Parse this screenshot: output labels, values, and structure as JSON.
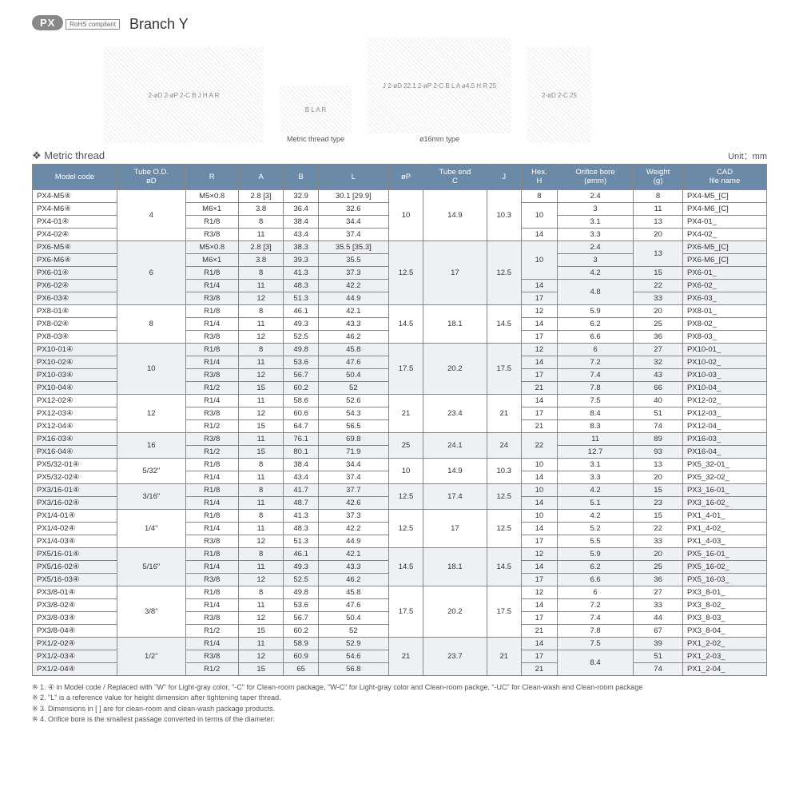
{
  "header": {
    "badge": "PX",
    "title": "Branch Y",
    "rohs": "RoHS compliant"
  },
  "diagrams": {
    "d1_labels": "2-øD  2-øP  2-C  B  J  H  A  R",
    "d2_caption": "Metric thread type",
    "d3_caption": "ø16mm type",
    "d3_labels": "J  2-øD  22.1  2-øP  2-C  B  L  A  ø4.5  H  R  25"
  },
  "section": {
    "title": "Metric thread",
    "unit": "Unit：mm"
  },
  "columns": [
    "Model code",
    "Tube O.D.\nøD",
    "R",
    "A",
    "B",
    "L",
    "øP",
    "Tube end\nC",
    "J",
    "Hex.\nH",
    "Orifice bore\n(ømm)",
    "Weight\n(g)",
    "CAD\nfile name"
  ],
  "groups": [
    {
      "alt": false,
      "od": "4",
      "p": "10",
      "c": "14.9",
      "j": "10.3",
      "rows": [
        {
          "m": "PX4-M5④",
          "r": "M5×0.8",
          "a": "2.8 [3]",
          "b": "32.9",
          "l": "30.1 [29.9]",
          "h": "8",
          "ob": "2.4",
          "w": "8",
          "cad": "PX4-M5_[C]"
        },
        {
          "m": "PX4-M6④",
          "r": "M6×1",
          "a": "3.8",
          "b": "36.4",
          "l": "32.6",
          "h": "10",
          "hspan": 2,
          "ob": "3",
          "w": "11",
          "cad": "PX4-M6_[C]"
        },
        {
          "m": "PX4-01④",
          "r": "R1/8",
          "a": "8",
          "b": "38.4",
          "l": "34.4",
          "ob": "3.1",
          "w": "13",
          "cad": "PX4-01_"
        },
        {
          "m": "PX4-02④",
          "r": "R3/8",
          "a": "11",
          "b": "43.4",
          "l": "37.4",
          "h": "14",
          "ob": "3.3",
          "w": "20",
          "cad": "PX4-02_"
        }
      ]
    },
    {
      "alt": true,
      "od": "6",
      "p": "12.5",
      "c": "17",
      "j": "12.5",
      "rows": [
        {
          "m": "PX6-M5④",
          "r": "M5×0.8",
          "a": "2.8 [3]",
          "b": "38.3",
          "l": "35.5 [35.3]",
          "h": "10",
          "hspan": 3,
          "ob": "2.4",
          "w": "13",
          "wspan": 2,
          "cad": "PX6-M5_[C]"
        },
        {
          "m": "PX6-M6④",
          "r": "M6×1",
          "a": "3.8",
          "b": "39.3",
          "l": "35.5",
          "ob": "3",
          "cad": "PX6-M6_[C]"
        },
        {
          "m": "PX6-01④",
          "r": "R1/8",
          "a": "8",
          "b": "41.3",
          "l": "37.3",
          "ob": "4.2",
          "w": "15",
          "cad": "PX6-01_"
        },
        {
          "m": "PX6-02④",
          "r": "R1/4",
          "a": "11",
          "b": "48.3",
          "l": "42.2",
          "h": "14",
          "ob": "4.8",
          "obspan": 2,
          "w": "22",
          "cad": "PX6-02_"
        },
        {
          "m": "PX6-03④",
          "r": "R3/8",
          "a": "12",
          "b": "51.3",
          "l": "44.9",
          "h": "17",
          "w": "33",
          "cad": "PX6-03_"
        }
      ]
    },
    {
      "alt": false,
      "od": "8",
      "p": "14.5",
      "c": "18.1",
      "j": "14.5",
      "rows": [
        {
          "m": "PX8-01④",
          "r": "R1/8",
          "a": "8",
          "b": "46.1",
          "l": "42.1",
          "h": "12",
          "ob": "5.9",
          "w": "20",
          "cad": "PX8-01_"
        },
        {
          "m": "PX8-02④",
          "r": "R1/4",
          "a": "11",
          "b": "49.3",
          "l": "43.3",
          "h": "14",
          "ob": "6.2",
          "w": "25",
          "cad": "PX8-02_"
        },
        {
          "m": "PX8-03④",
          "r": "R3/8",
          "a": "12",
          "b": "52.5",
          "l": "46.2",
          "h": "17",
          "ob": "6.6",
          "w": "36",
          "cad": "PX8-03_"
        }
      ]
    },
    {
      "alt": true,
      "od": "10",
      "p": "17.5",
      "c": "20.2",
      "j": "17.5",
      "rows": [
        {
          "m": "PX10-01④",
          "r": "R1/8",
          "a": "8",
          "b": "49.8",
          "l": "45.8",
          "h": "12",
          "ob": "6",
          "w": "27",
          "cad": "PX10-01_"
        },
        {
          "m": "PX10-02④",
          "r": "R1/4",
          "a": "11",
          "b": "53.6",
          "l": "47.6",
          "h": "14",
          "ob": "7.2",
          "w": "32",
          "cad": "PX10-02_"
        },
        {
          "m": "PX10-03④",
          "r": "R3/8",
          "a": "12",
          "b": "56.7",
          "l": "50.4",
          "h": "17",
          "ob": "7.4",
          "w": "43",
          "cad": "PX10-03_"
        },
        {
          "m": "PX10-04④",
          "r": "R1/2",
          "a": "15",
          "b": "60.2",
          "l": "52",
          "h": "21",
          "ob": "7.8",
          "w": "66",
          "cad": "PX10-04_"
        }
      ]
    },
    {
      "alt": false,
      "od": "12",
      "p": "21",
      "c": "23.4",
      "j": "21",
      "rows": [
        {
          "m": "PX12-02④",
          "r": "R1/4",
          "a": "11",
          "b": "58.6",
          "l": "52.6",
          "h": "14",
          "ob": "7.5",
          "w": "40",
          "cad": "PX12-02_"
        },
        {
          "m": "PX12-03④",
          "r": "R3/8",
          "a": "12",
          "b": "60.6",
          "l": "54.3",
          "h": "17",
          "ob": "8.4",
          "w": "51",
          "cad": "PX12-03_"
        },
        {
          "m": "PX12-04④",
          "r": "R1/2",
          "a": "15",
          "b": "64.7",
          "l": "56.5",
          "h": "21",
          "ob": "8.3",
          "w": "74",
          "cad": "PX12-04_"
        }
      ]
    },
    {
      "alt": true,
      "od": "16",
      "p": "25",
      "c": "24.1",
      "j": "24",
      "rows": [
        {
          "m": "PX16-03④",
          "r": "R3/8",
          "a": "11",
          "b": "76.1",
          "l": "69.8",
          "h": "22",
          "hspan": 2,
          "ob": "11",
          "w": "89",
          "cad": "PX16-03_"
        },
        {
          "m": "PX16-04④",
          "r": "R1/2",
          "a": "15",
          "b": "80.1",
          "l": "71.9",
          "ob": "12.7",
          "w": "93",
          "cad": "PX16-04_"
        }
      ]
    },
    {
      "alt": false,
      "od": "5/32\"",
      "p": "10",
      "c": "14.9",
      "j": "10.3",
      "rows": [
        {
          "m": "PX5/32-01④",
          "r": "R1/8",
          "a": "8",
          "b": "38.4",
          "l": "34.4",
          "h": "10",
          "ob": "3.1",
          "w": "13",
          "cad": "PX5_32-01_"
        },
        {
          "m": "PX5/32-02④",
          "r": "R1/4",
          "a": "11",
          "b": "43.4",
          "l": "37.4",
          "h": "14",
          "ob": "3.3",
          "w": "20",
          "cad": "PX5_32-02_"
        }
      ]
    },
    {
      "alt": true,
      "od": "3/16\"",
      "p": "12.5",
      "c": "17.4",
      "j": "12.5",
      "rows": [
        {
          "m": "PX3/16-01④",
          "r": "R1/8",
          "a": "8",
          "b": "41.7",
          "l": "37.7",
          "h": "10",
          "ob": "4.2",
          "w": "15",
          "cad": "PX3_16-01_"
        },
        {
          "m": "PX3/16-02④",
          "r": "R1/4",
          "a": "11",
          "b": "48.7",
          "l": "42.6",
          "h": "14",
          "ob": "5.1",
          "w": "23",
          "cad": "PX3_16-02_"
        }
      ]
    },
    {
      "alt": false,
      "od": "1/4\"",
      "p": "12.5",
      "c": "17",
      "j": "12.5",
      "rows": [
        {
          "m": "PX1/4-01④",
          "r": "R1/8",
          "a": "8",
          "b": "41.3",
          "l": "37.3",
          "h": "10",
          "ob": "4.2",
          "w": "15",
          "cad": "PX1_4-01_"
        },
        {
          "m": "PX1/4-02④",
          "r": "R1/4",
          "a": "11",
          "b": "48.3",
          "l": "42.2",
          "h": "14",
          "ob": "5.2",
          "w": "22",
          "cad": "PX1_4-02_"
        },
        {
          "m": "PX1/4-03④",
          "r": "R3/8",
          "a": "12",
          "b": "51.3",
          "l": "44.9",
          "h": "17",
          "ob": "5.5",
          "w": "33",
          "cad": "PX1_4-03_"
        }
      ]
    },
    {
      "alt": true,
      "od": "5/16\"",
      "p": "14.5",
      "c": "18.1",
      "j": "14.5",
      "rows": [
        {
          "m": "PX5/16-01④",
          "r": "R1/8",
          "a": "8",
          "b": "46.1",
          "l": "42.1",
          "h": "12",
          "ob": "5.9",
          "w": "20",
          "cad": "PX5_16-01_"
        },
        {
          "m": "PX5/16-02④",
          "r": "R1/4",
          "a": "11",
          "b": "49.3",
          "l": "43.3",
          "h": "14",
          "ob": "6.2",
          "w": "25",
          "cad": "PX5_16-02_"
        },
        {
          "m": "PX5/16-03④",
          "r": "R3/8",
          "a": "12",
          "b": "52.5",
          "l": "46.2",
          "h": "17",
          "ob": "6.6",
          "w": "36",
          "cad": "PX5_16-03_"
        }
      ]
    },
    {
      "alt": false,
      "od": "3/8\"",
      "p": "17.5",
      "c": "20.2",
      "j": "17.5",
      "rows": [
        {
          "m": "PX3/8-01④",
          "r": "R1/8",
          "a": "8",
          "b": "49.8",
          "l": "45.8",
          "h": "12",
          "ob": "6",
          "w": "27",
          "cad": "PX3_8-01_"
        },
        {
          "m": "PX3/8-02④",
          "r": "R1/4",
          "a": "11",
          "b": "53.6",
          "l": "47.6",
          "h": "14",
          "ob": "7.2",
          "w": "33",
          "cad": "PX3_8-02_"
        },
        {
          "m": "PX3/8-03④",
          "r": "R3/8",
          "a": "12",
          "b": "56.7",
          "l": "50.4",
          "h": "17",
          "ob": "7.4",
          "w": "44",
          "cad": "PX3_8-03_"
        },
        {
          "m": "PX3/8-04④",
          "r": "R1/2",
          "a": "15",
          "b": "60.2",
          "l": "52",
          "h": "21",
          "ob": "7.8",
          "w": "67",
          "cad": "PX3_8-04_"
        }
      ]
    },
    {
      "alt": true,
      "od": "1/2\"",
      "p": "21",
      "c": "23.7",
      "j": "21",
      "rows": [
        {
          "m": "PX1/2-02④",
          "r": "R1/4",
          "a": "11",
          "b": "58.9",
          "l": "52.9",
          "h": "14",
          "ob": "7.5",
          "w": "39",
          "cad": "PX1_2-02_"
        },
        {
          "m": "PX1/2-03④",
          "r": "R3/8",
          "a": "12",
          "b": "60.9",
          "l": "54.6",
          "h": "17",
          "ob": "8.4",
          "obspan": 2,
          "w": "51",
          "cad": "PX1_2-03_"
        },
        {
          "m": "PX1/2-04④",
          "r": "R1/2",
          "a": "15",
          "b": "65",
          "l": "56.8",
          "h": "21",
          "w": "74",
          "cad": "PX1_2-04_"
        }
      ]
    }
  ],
  "notes": [
    "※ 1. ④ in Model code / Replaced with \"W\" for Light-gray color, \"-C\" for Clean-room package, \"W-C\" for Light-gray color and Clean-room packge, \"-UC\" for Clean-wash and Clean-room package",
    "※ 2. \"L\" is a reference value for height dimension after tightening taper thread.",
    "※ 3. Dimensions in [ ] are for clean-room and clean-wash package products.",
    "※ 4. Orifice bore is the smallest passage converted in terms of the diameter."
  ]
}
